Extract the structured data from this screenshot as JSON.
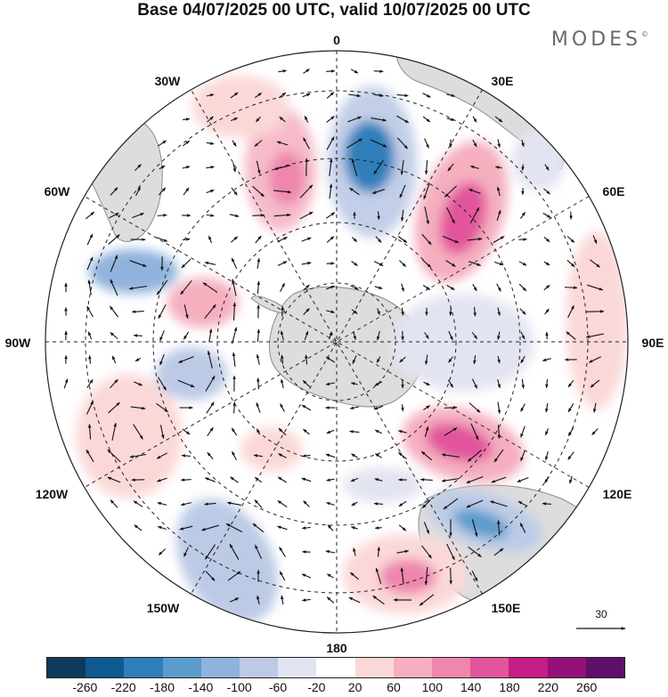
{
  "title": "Base 04/07/2025 00 UTC, valid 10/07/2025 00 UTC",
  "brand": "MODES",
  "brand_mark": "©",
  "map": {
    "projection": "south-polar-stereographic",
    "longitude_labels": [
      "0",
      "30E",
      "60E",
      "90E",
      "120E",
      "150E",
      "180",
      "150W",
      "120W",
      "90W",
      "60W",
      "30W"
    ],
    "reference_vector": {
      "value": "30"
    }
  },
  "colorbar": {
    "colors": [
      "#0e3a5c",
      "#0f5a8f",
      "#2f7fba",
      "#5a9dcc",
      "#8fb3dc",
      "#bccae6",
      "#e3e4f1",
      "#ffffff",
      "#fbd8d8",
      "#f5afbf",
      "#ee86ad",
      "#e2559c",
      "#c51e86",
      "#931279",
      "#5e106a"
    ],
    "ticks": [
      "-260",
      "-220",
      "-180",
      "-140",
      "-100",
      "-60",
      "-20",
      "20",
      "60",
      "100",
      "140",
      "180",
      "220",
      "260"
    ]
  },
  "colors": {
    "land": "#dddddd",
    "coast": "#8a8a8a",
    "grid": "#222222",
    "arrow": "#111111"
  }
}
